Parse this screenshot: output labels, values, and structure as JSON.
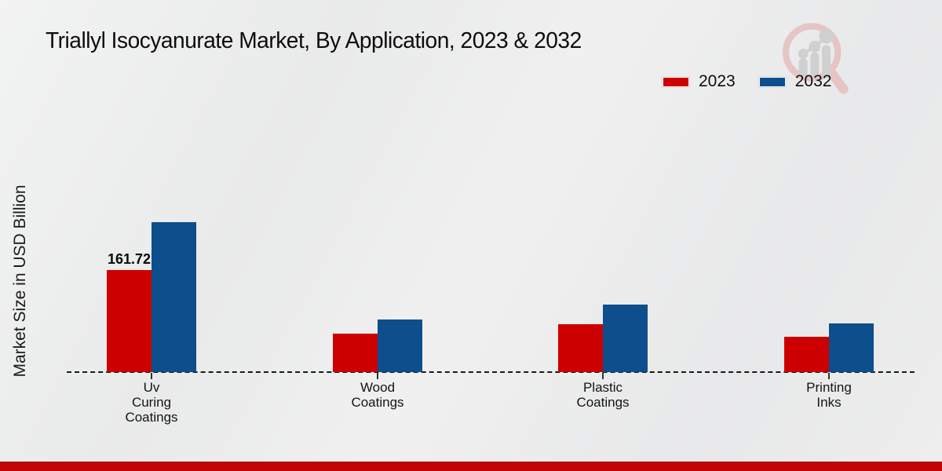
{
  "title": "Triallyl Isocyanurate Market, By Application, 2023 & 2032",
  "ylabel": "Market Size in USD Billion",
  "legend": [
    {
      "label": "2023",
      "color": "#cc0000"
    },
    {
      "label": "2032",
      "color": "#0d4e8c"
    }
  ],
  "colors": {
    "series_2023": "#cc0000",
    "series_2032": "#0d4e8c",
    "footer_strip": "#c00404",
    "baseline": "#1a1a1a"
  },
  "watermark_icon": "magnifier-bar-chart-logo",
  "chart_data": {
    "type": "bar",
    "title": "Triallyl Isocyanurate Market, By Application, 2023 & 2032",
    "xlabel": "",
    "ylabel": "Market Size in USD Billion",
    "categories": [
      "Uv Curing Coatings",
      "Wood Coatings",
      "Plastic Coatings",
      "Printing Inks"
    ],
    "category_lines": [
      [
        "Uv",
        "Curing",
        "Coatings"
      ],
      [
        "Wood",
        "Coatings"
      ],
      [
        "Plastic",
        "Coatings"
      ],
      [
        "Printing",
        "Inks"
      ]
    ],
    "series": [
      {
        "name": "2023",
        "color": "#cc0000",
        "values": [
          161.72,
          61.0,
          75.9,
          56.0
        ]
      },
      {
        "name": "2032",
        "color": "#0d4e8c",
        "values": [
          237.6,
          83.4,
          107.0,
          77.2
        ]
      }
    ],
    "data_labels": [
      {
        "series": "2023",
        "category": "Uv Curing Coatings",
        "text": "161.72"
      }
    ],
    "ylim": [
      0,
      260
    ],
    "grid": false,
    "legend_position": "top-right",
    "baseline_style": "dashed",
    "y_axis_ticks_visible": false
  }
}
